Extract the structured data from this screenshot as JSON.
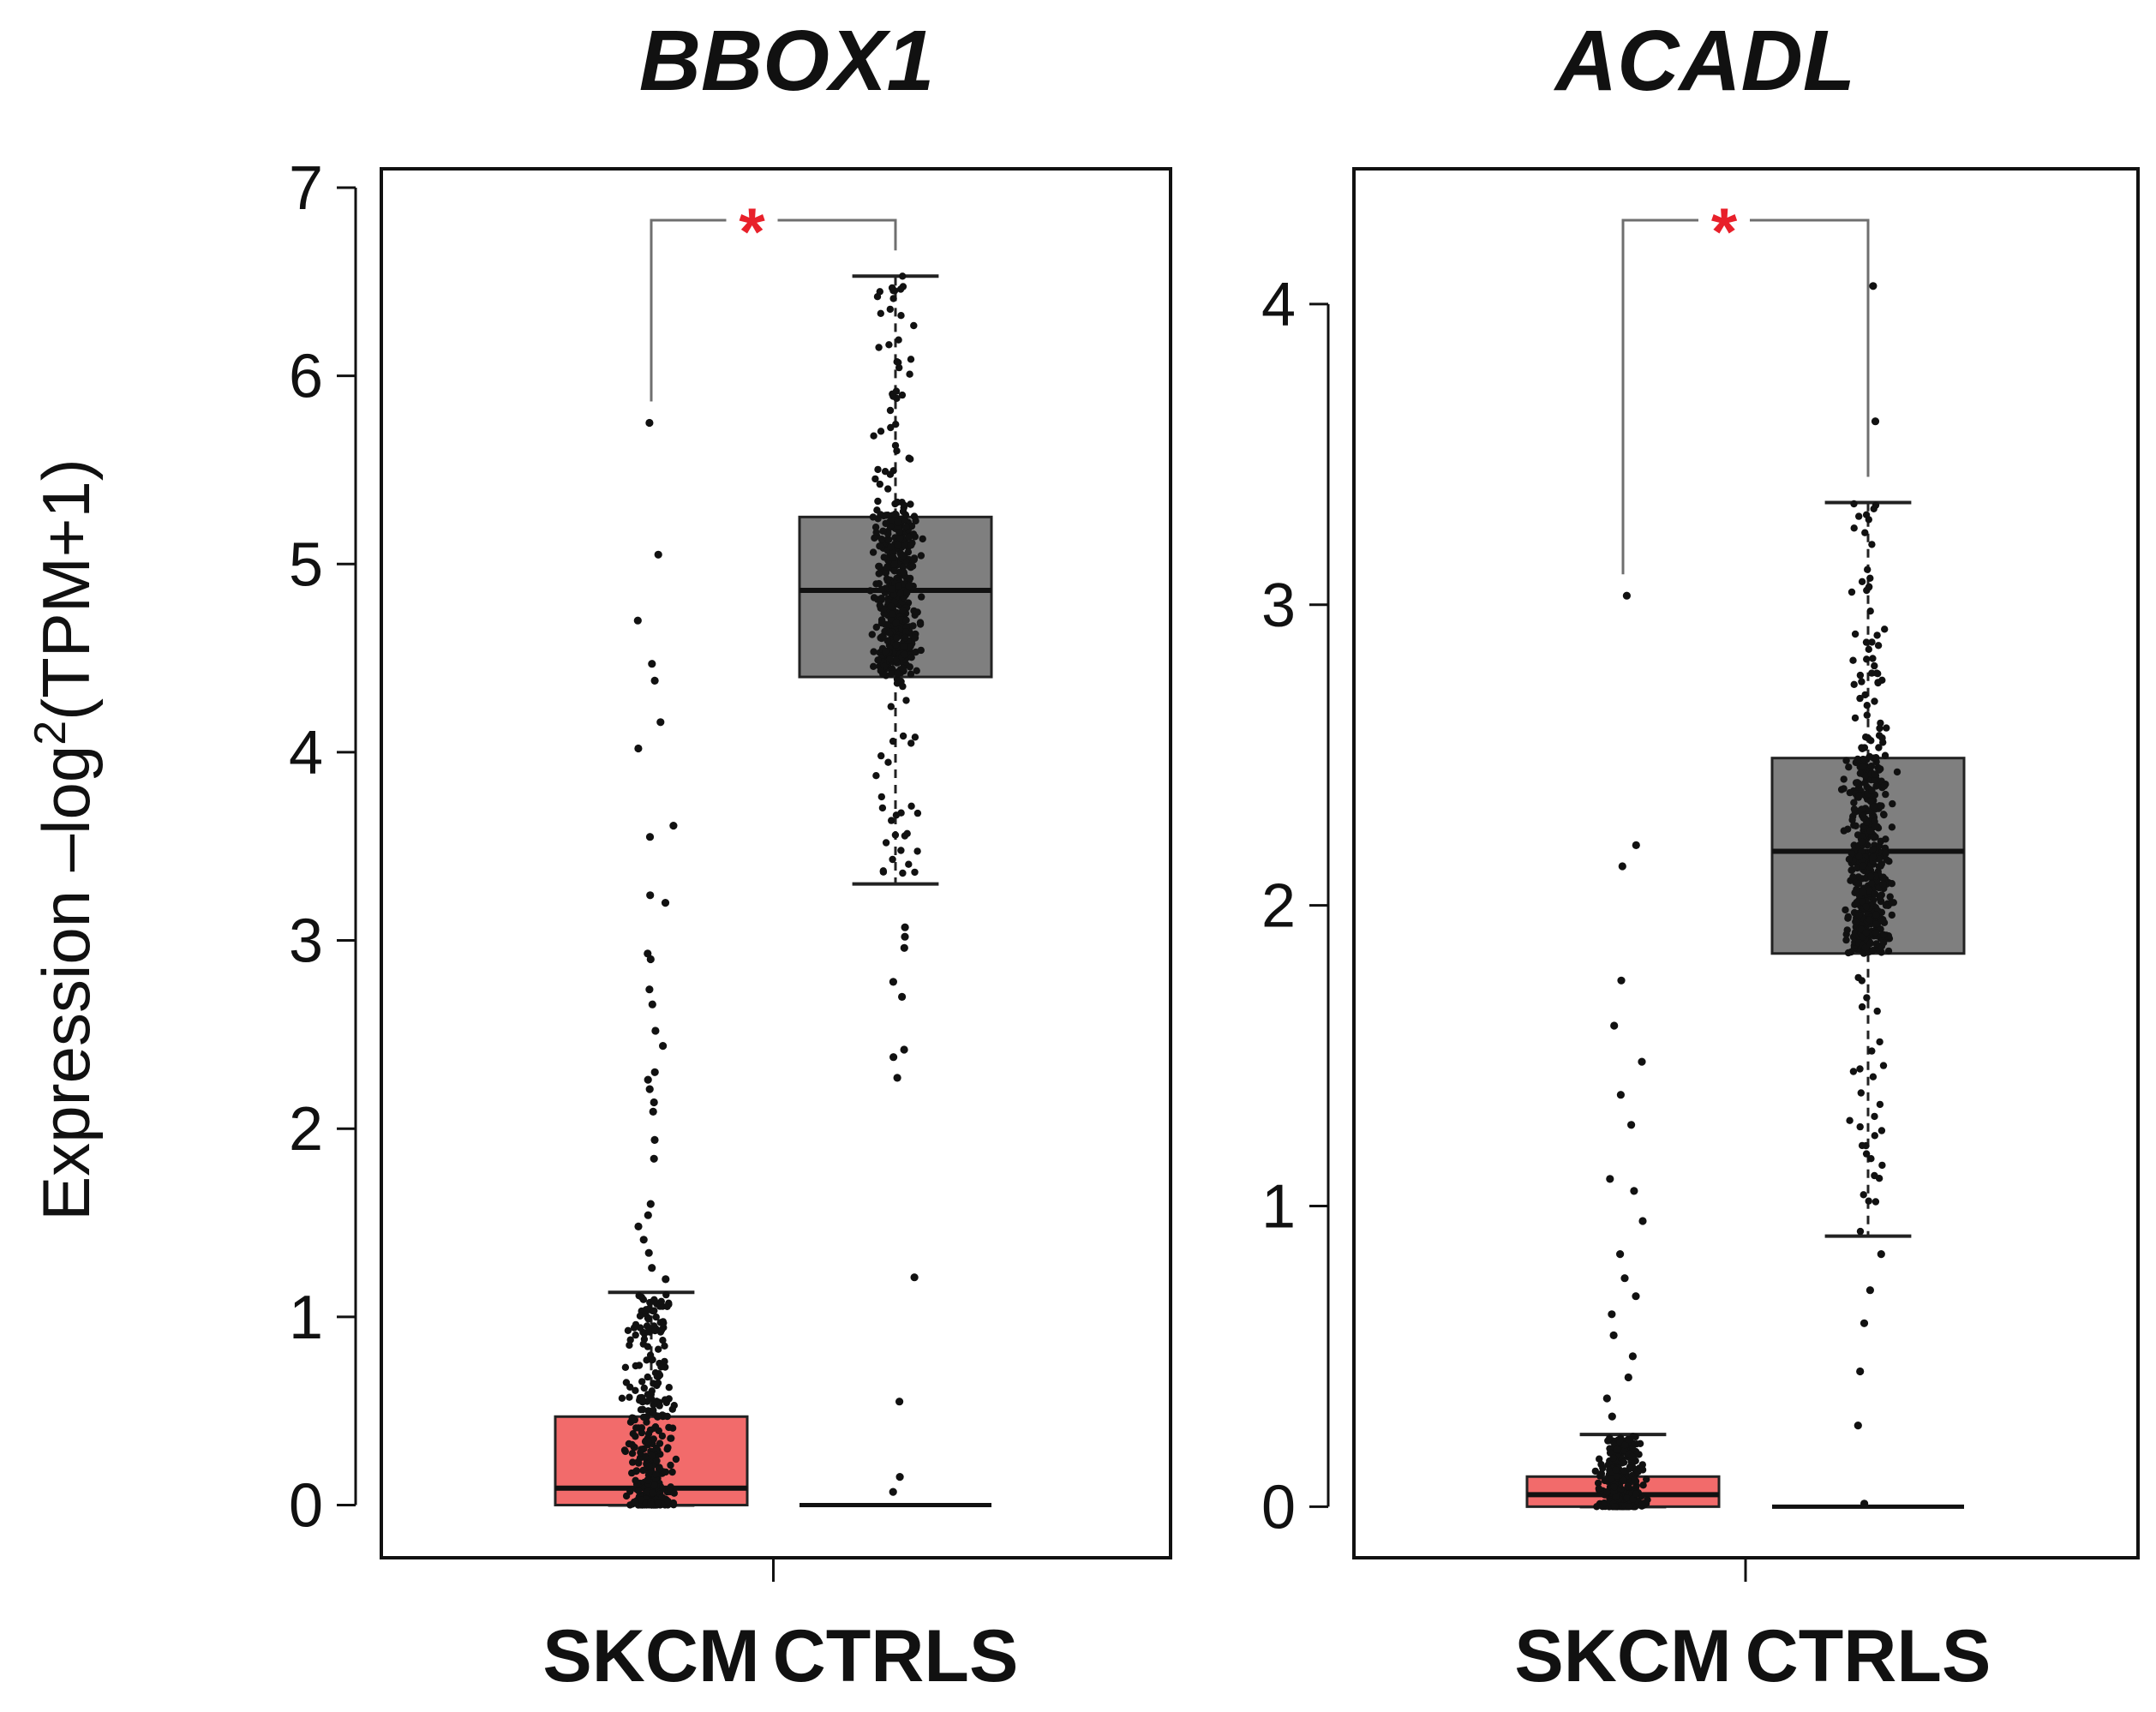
{
  "y_axis_label": {
    "prefix": "Expression –log",
    "superscript": "2",
    "suffix": "(TPM+1)"
  },
  "chart_data": [
    {
      "type": "box",
      "title": "BBOX1",
      "ylabel": "Expression –log2(TPM+1)",
      "ylim": [
        -0.28,
        7.1
      ],
      "yticks": [
        0,
        1,
        2,
        3,
        4,
        5,
        6,
        7
      ],
      "categories": [
        "SKCM",
        "CTRLS"
      ],
      "significance": "*",
      "boxes": [
        {
          "name": "SKCM",
          "color": "#f26b6b",
          "q1": 0.0,
          "median": 0.09,
          "q3": 0.47,
          "whisker_low": 0.0,
          "whisker_high": 1.13,
          "outliers": [
            5.75,
            5.05,
            4.7,
            4.47,
            4.38,
            4.16,
            4.02,
            3.61,
            3.55,
            3.24,
            3.2,
            2.93,
            2.9,
            2.74,
            2.66,
            2.52,
            2.44,
            2.3,
            2.26,
            2.21,
            2.14,
            2.09,
            1.94,
            1.84,
            1.6,
            1.54,
            1.48,
            1.41,
            1.34,
            1.26,
            1.2
          ]
        },
        {
          "name": "CTRLS",
          "color": "#7f7f7f",
          "q1": 4.4,
          "median": 4.86,
          "q3": 5.25,
          "whisker_low": 3.3,
          "whisker_high": 6.53,
          "outliers": [
            3.07,
            3.02,
            2.96,
            2.78,
            2.7,
            2.42,
            2.38,
            2.27,
            1.21,
            0.55,
            0.15,
            0.07
          ]
        }
      ]
    },
    {
      "type": "box",
      "title": "ACADL",
      "ylabel": "Expression –log2(TPM+1)",
      "ylim": [
        -0.17,
        4.45
      ],
      "yticks": [
        0,
        1,
        2,
        3,
        4
      ],
      "categories": [
        "SKCM",
        "CTRLS"
      ],
      "significance": "*",
      "boxes": [
        {
          "name": "SKCM",
          "color": "#f26b6b",
          "q1": 0.0,
          "median": 0.04,
          "q3": 0.1,
          "whisker_low": 0.0,
          "whisker_high": 0.24,
          "outliers": [
            3.03,
            2.2,
            2.13,
            1.75,
            1.6,
            1.48,
            1.37,
            1.27,
            1.09,
            1.05,
            0.95,
            0.84,
            0.76,
            0.7,
            0.64,
            0.57,
            0.5,
            0.43,
            0.36,
            0.3
          ]
        },
        {
          "name": "CTRLS",
          "color": "#7f7f7f",
          "q1": 1.84,
          "median": 2.18,
          "q3": 2.49,
          "whisker_low": 0.9,
          "whisker_high": 3.34,
          "outliers": [
            4.06,
            3.61,
            0.84,
            0.72,
            0.61,
            0.45,
            0.27,
            0.01
          ]
        }
      ]
    }
  ]
}
